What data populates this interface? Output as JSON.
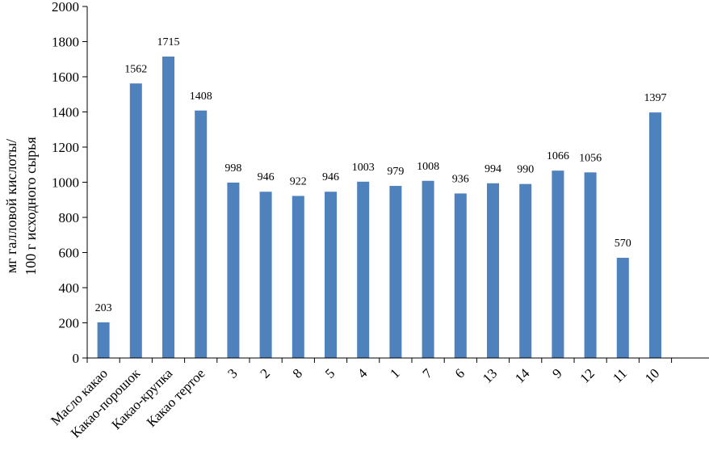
{
  "chart_data": {
    "type": "bar",
    "categories": [
      "Масло какао",
      "Какао-порошок",
      "Какао-крупка",
      "Какао тертое",
      "3",
      "2",
      "8",
      "5",
      "4",
      "1",
      "7",
      "6",
      "13",
      "14",
      "9",
      "12",
      "11",
      "10"
    ],
    "values": [
      203,
      1562,
      1715,
      1408,
      998,
      946,
      922,
      946,
      1003,
      979,
      1008,
      936,
      994,
      990,
      1066,
      1056,
      570,
      1397
    ],
    "data_labels": [
      "203",
      "1562",
      "1715",
      "1408",
      "998",
      "946",
      "922",
      "946",
      "1003",
      "979",
      "1008",
      "936",
      "994",
      "990",
      "1066",
      "1056",
      "570",
      "1397"
    ],
    "ylabel_lines": [
      "мг галловой кислоты/",
      "100 г исходного сырья"
    ],
    "ylim": [
      0,
      2000
    ],
    "yticks": [
      0,
      200,
      400,
      600,
      800,
      1000,
      1200,
      1400,
      1600,
      1800,
      2000
    ],
    "ytick_labels": [
      "0",
      "200",
      "400",
      "600",
      "800",
      "1000",
      "1200",
      "1400",
      "1600",
      "1800",
      "2000"
    ],
    "grid": false,
    "bar_color": "#4f81bd"
  }
}
